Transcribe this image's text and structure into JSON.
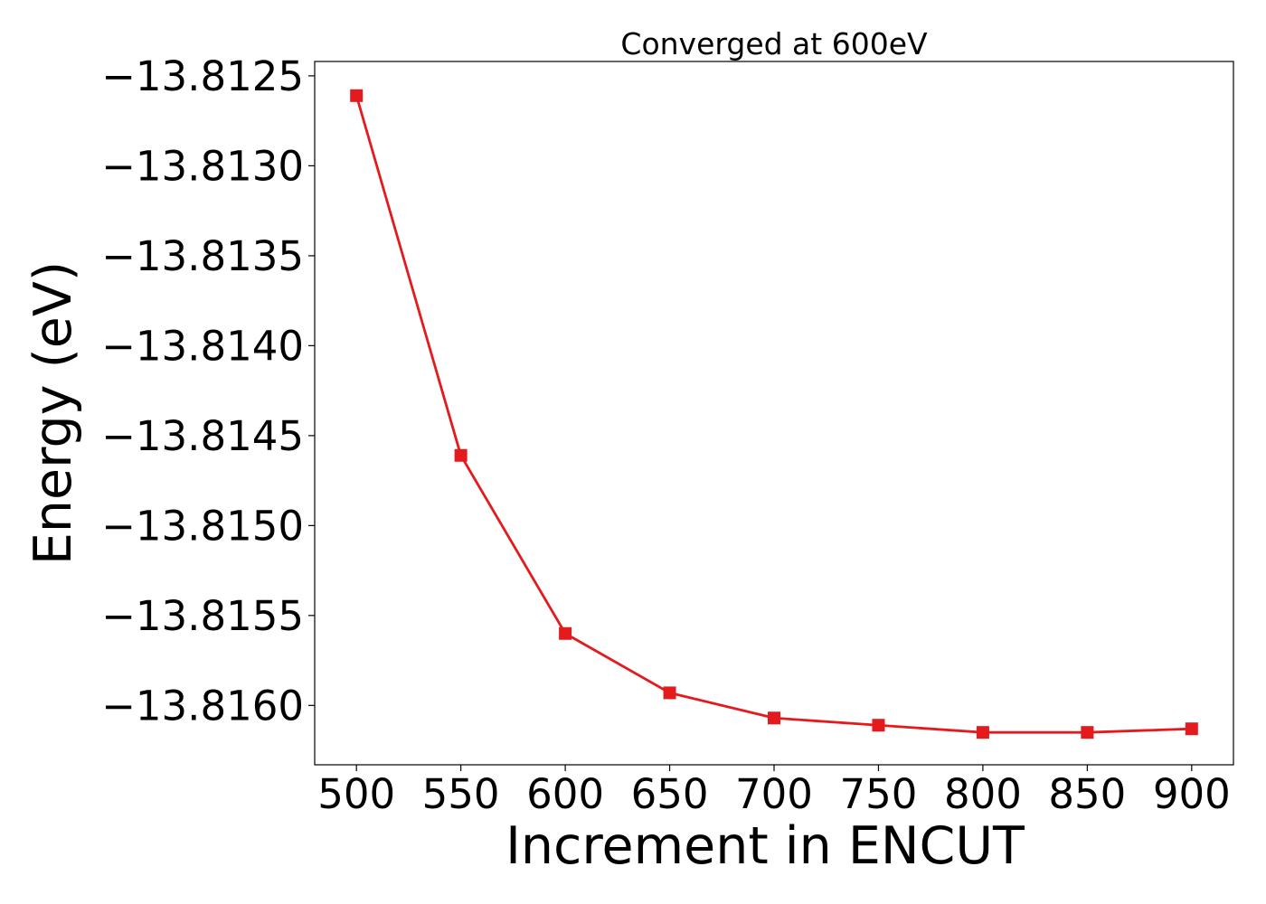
{
  "chart_data": {
    "type": "line",
    "title": "Converged at 600eV",
    "xlabel": "Increment in ENCUT",
    "ylabel": "Energy (eV)",
    "xlim": [
      480,
      920
    ],
    "ylim": [
      -13.81633,
      -13.81242
    ],
    "x_ticks": [
      500,
      550,
      600,
      650,
      700,
      750,
      800,
      850,
      900
    ],
    "x_tick_labels": [
      "500",
      "550",
      "600",
      "650",
      "700",
      "750",
      "800",
      "850",
      "900"
    ],
    "y_ticks": [
      -13.8125,
      -13.813,
      -13.8135,
      -13.814,
      -13.8145,
      -13.815,
      -13.8155,
      -13.816
    ],
    "y_tick_labels": [
      "−13.8125",
      "−13.8130",
      "−13.8135",
      "−13.8140",
      "−13.8145",
      "−13.8150",
      "−13.8155",
      "−13.8160"
    ],
    "grid": false,
    "series": [
      {
        "color": "#e41a1c",
        "marker": "square",
        "x": [
          500,
          550,
          600,
          650,
          700,
          750,
          800,
          850,
          900
        ],
        "y": [
          -13.81261,
          -13.81461,
          -13.8156,
          -13.81593,
          -13.81607,
          -13.81611,
          -13.81615,
          -13.81615,
          -13.81613
        ]
      }
    ]
  }
}
